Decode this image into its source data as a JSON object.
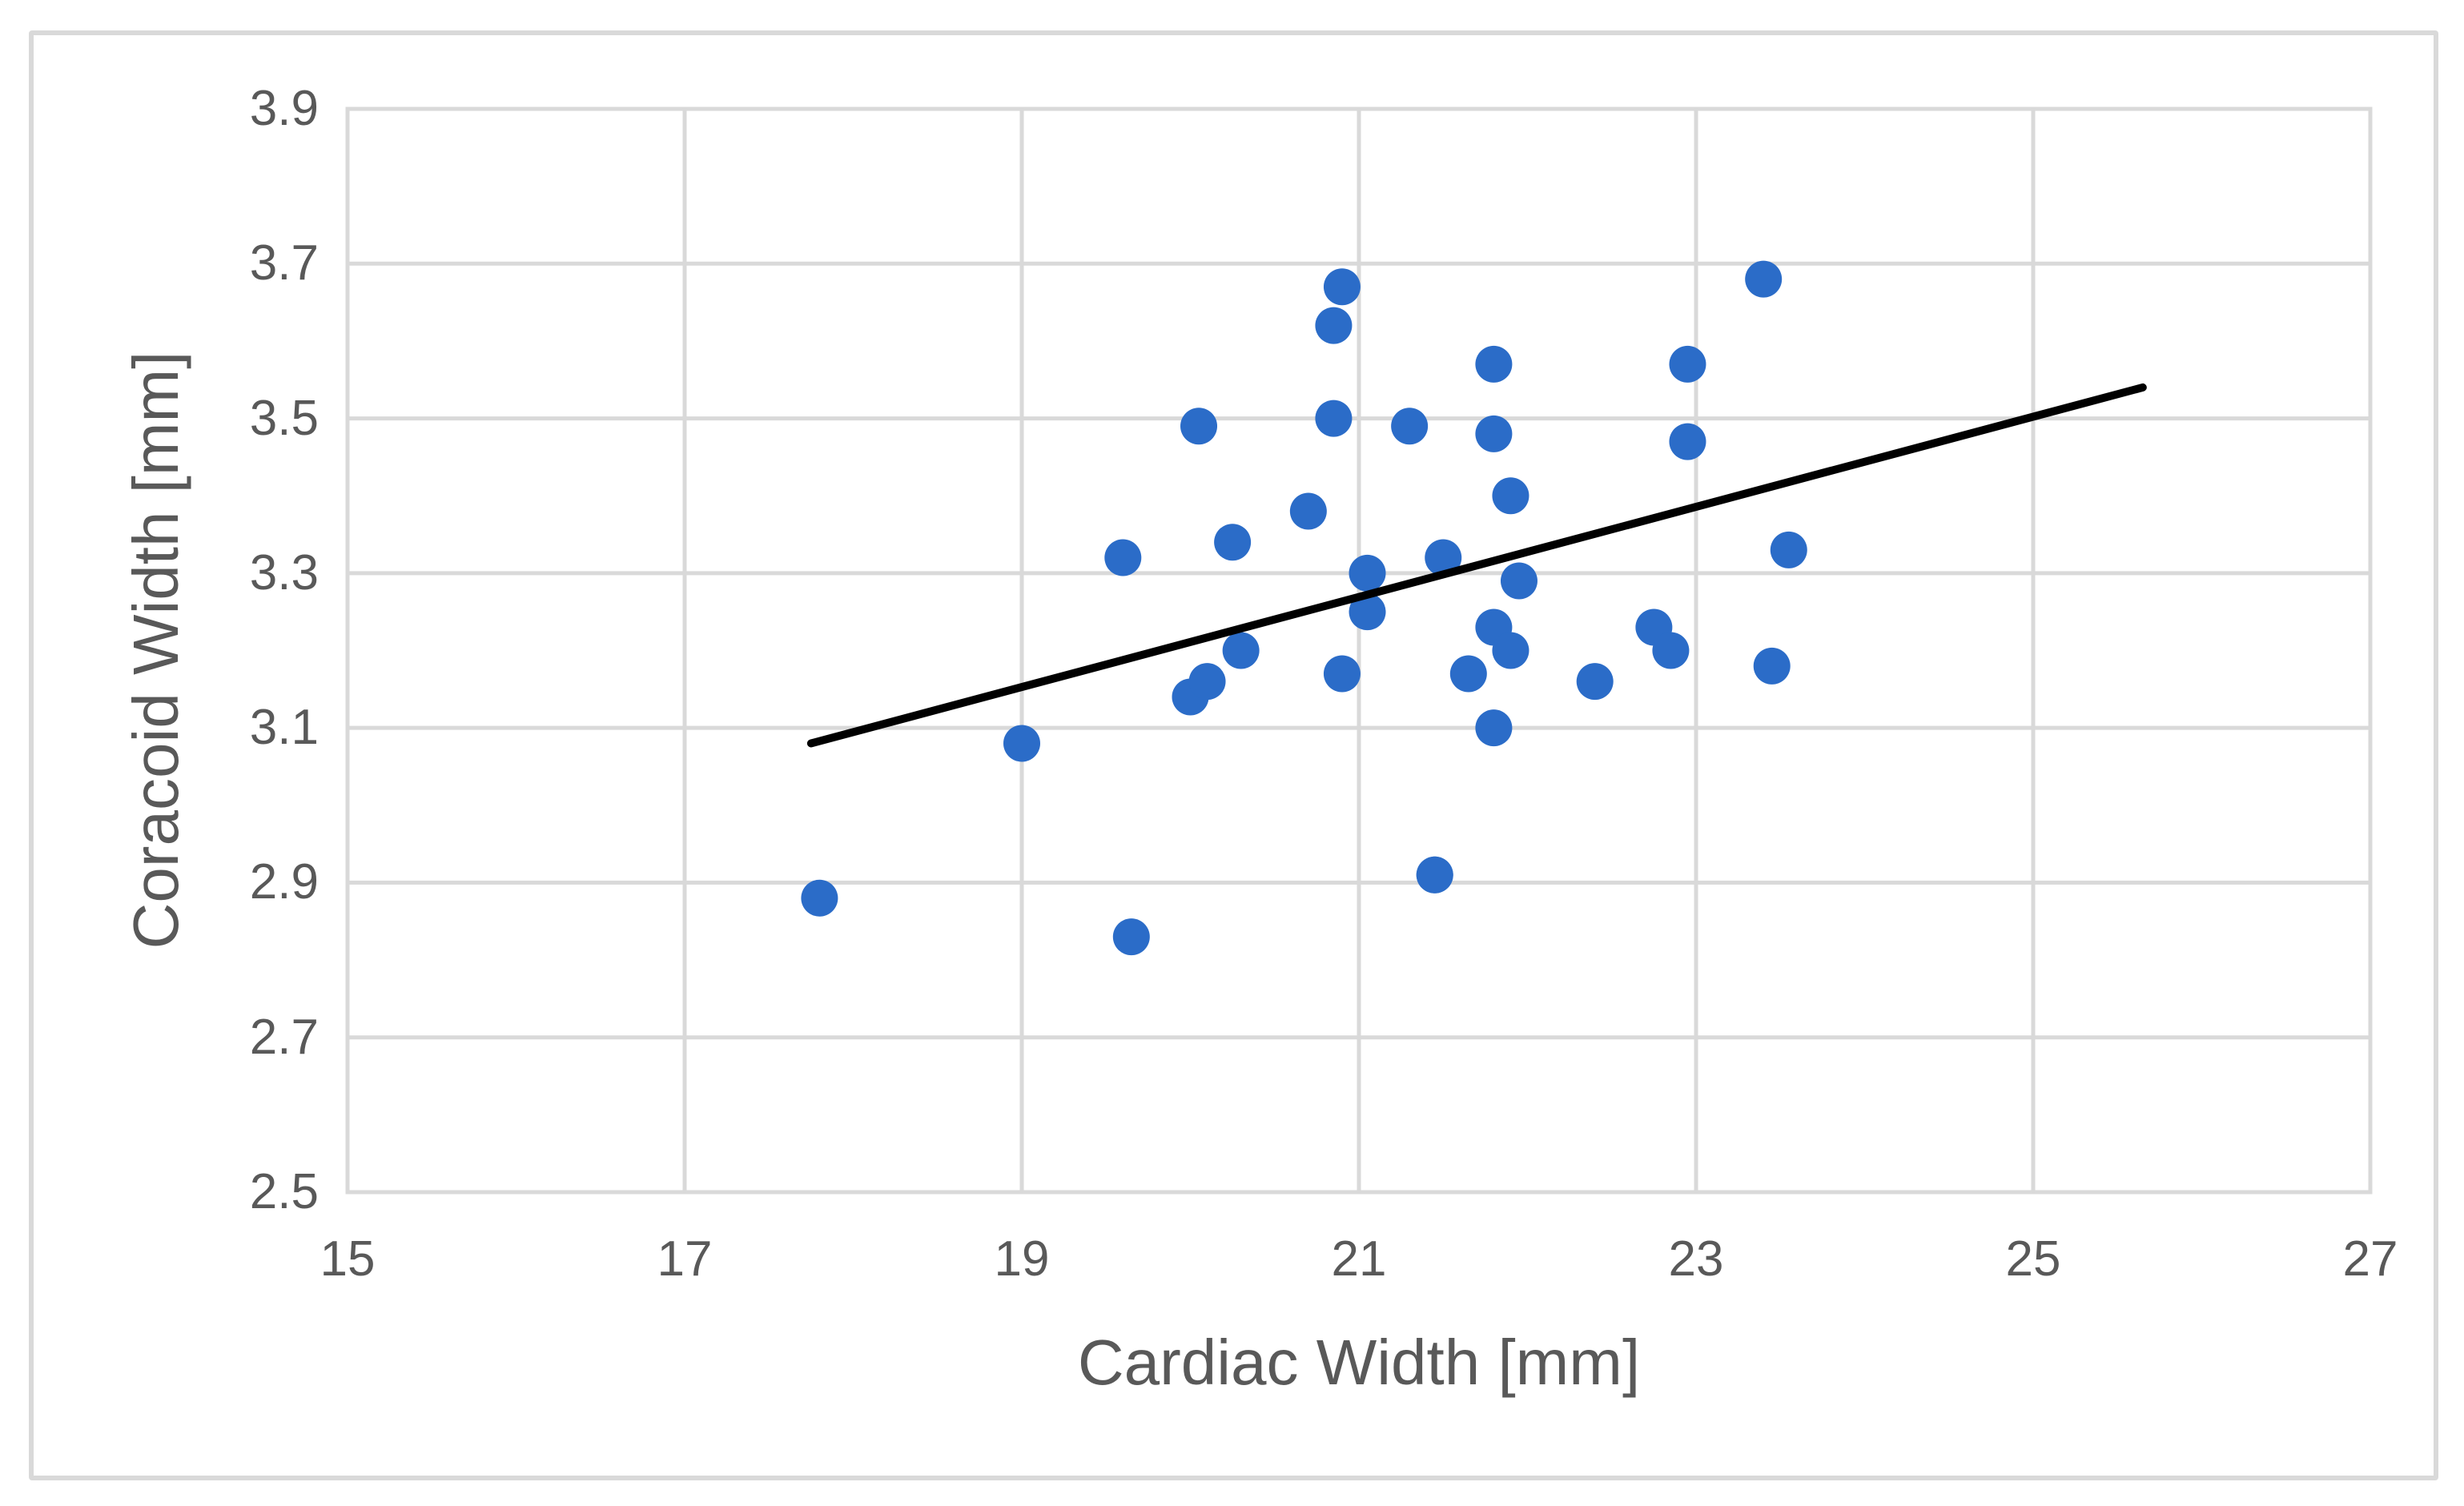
{
  "figure": {
    "background": "#ffffff",
    "frame_color": "#d9d9d9"
  },
  "chart_data": {
    "type": "scatter",
    "title": "",
    "xlabel": "Cardiac Width [mm]",
    "ylabel": "Coracoid Width [mm]",
    "xlim": [
      15,
      27
    ],
    "ylim": [
      2.5,
      3.9
    ],
    "xticks": [
      "15",
      "17",
      "19",
      "21",
      "23",
      "25",
      "27"
    ],
    "yticks": [
      "3.9",
      "3.7",
      "3.5",
      "3.3",
      "3.1",
      "2.9",
      "2.7",
      "2.5"
    ],
    "grid": true,
    "legend_position": "none",
    "marker_color": "#2b6cc8",
    "trendline_color": "#000000",
    "gridline_color": "#d9d9d9",
    "label_color": "#595959",
    "points": [
      [
        17.8,
        2.88
      ],
      [
        19.0,
        3.08
      ],
      [
        19.65,
        2.83
      ],
      [
        19.6,
        3.32
      ],
      [
        20.05,
        3.49
      ],
      [
        20.0,
        3.14
      ],
      [
        20.1,
        3.16
      ],
      [
        20.25,
        3.34
      ],
      [
        20.3,
        3.2
      ],
      [
        20.7,
        3.38
      ],
      [
        20.85,
        3.62
      ],
      [
        20.9,
        3.67
      ],
      [
        20.85,
        3.5
      ],
      [
        20.9,
        3.17
      ],
      [
        21.05,
        3.3
      ],
      [
        21.05,
        3.25
      ],
      [
        21.3,
        3.49
      ],
      [
        21.45,
        2.91
      ],
      [
        21.5,
        3.32
      ],
      [
        21.8,
        3.57
      ],
      [
        21.8,
        3.48
      ],
      [
        21.65,
        3.17
      ],
      [
        21.8,
        3.1
      ],
      [
        21.9,
        3.4
      ],
      [
        21.8,
        3.23
      ],
      [
        21.9,
        3.2
      ],
      [
        21.95,
        3.29
      ],
      [
        22.4,
        3.16
      ],
      [
        22.75,
        3.23
      ],
      [
        22.85,
        3.2
      ],
      [
        22.95,
        3.57
      ],
      [
        22.95,
        3.47
      ],
      [
        23.4,
        3.68
      ],
      [
        23.55,
        3.33
      ],
      [
        23.45,
        3.18
      ],
      [
        21.45,
        2.91
      ]
    ],
    "trendline": {
      "x1": 17.75,
      "y1": 3.08,
      "x2": 25.65,
      "y2": 3.54
    }
  }
}
